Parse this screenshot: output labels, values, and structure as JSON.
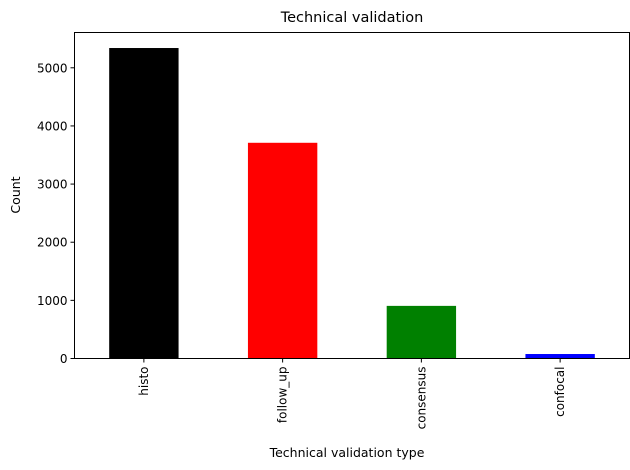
{
  "chart_data": {
    "type": "bar",
    "title": "Technical validation",
    "xlabel": "Technical validation type",
    "ylabel": "Count",
    "categories": [
      "histo",
      "follow_up",
      "consensus",
      "confocal"
    ],
    "values": [
      5340,
      3710,
      905,
      77
    ],
    "colors": [
      "#000000",
      "#ff0000",
      "#008000",
      "#0000ff"
    ],
    "ylim": [
      0,
      5607
    ],
    "yticks": [
      0,
      1000,
      2000,
      3000,
      4000,
      5000
    ],
    "ytick_labels": [
      "0",
      "1000",
      "2000",
      "3000",
      "4000",
      "5000"
    ],
    "grid": false,
    "legend": "none"
  }
}
